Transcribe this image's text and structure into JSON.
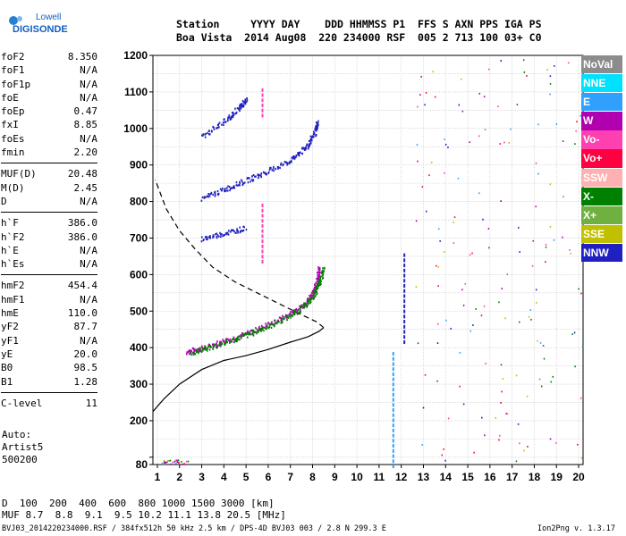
{
  "logo": {
    "line1": "Lowell",
    "line2": "DIGISONDE"
  },
  "header": {
    "line1": "Station     YYYY DAY    DDD HHMMSS P1  FFS S AXN PPS IGA PS",
    "line2": "Boa Vista  2014 Aug08  220 234000 RSF  005 2 713 100 03+ C0"
  },
  "params": [
    [
      [
        "foF2",
        "8.350"
      ],
      [
        "foF1",
        "N/A"
      ],
      [
        "foF1p",
        "N/A"
      ],
      [
        "foE",
        "N/A"
      ],
      [
        "foEp",
        "0.47"
      ],
      [
        "fxI",
        "8.85"
      ],
      [
        "foEs",
        "N/A"
      ],
      [
        "fmin",
        "2.20"
      ]
    ],
    [
      [
        "MUF(D)",
        "20.48"
      ],
      [
        "M(D)",
        "2.45"
      ],
      [
        "D",
        "N/A"
      ]
    ],
    [
      [
        "h`F",
        "386.0"
      ],
      [
        "h`F2",
        "386.0"
      ],
      [
        "h`E",
        "N/A"
      ],
      [
        "h`Es",
        "N/A"
      ]
    ],
    [
      [
        "hmF2",
        "454.4"
      ],
      [
        "hmF1",
        "N/A"
      ],
      [
        "hmE",
        "110.0"
      ],
      [
        "yF2",
        "87.7"
      ],
      [
        "yF1",
        "N/A"
      ],
      [
        "yE",
        "20.0"
      ],
      [
        "B0",
        "98.5"
      ],
      [
        "B1",
        "1.28"
      ]
    ],
    [
      [
        "C-level",
        "11"
      ]
    ]
  ],
  "auto": {
    "line1": "Auto:",
    "line2": "Artist5",
    "line3": "500200"
  },
  "dmuf": {
    "d_label": "D",
    "d_values": "  100  200  400  600  800 1000 1500 3000 [km]",
    "muf_label": "MUF",
    "muf_values": " 8.7  8.8  9.1  9.5 10.2 11.1 13.8 20.5 [MHz]"
  },
  "footer": {
    "left": "BVJ03_2014220234000.RSF / 384fx512h 50 kHz 2.5 km / DPS-4D BVJ03 003 / 2.8 N 299.3 E",
    "right": "Ion2Png v. 1.3.17"
  },
  "legend": [
    {
      "label": "NoVal",
      "color": "#8c8c8c"
    },
    {
      "label": "NNE",
      "color": "#00e0ff"
    },
    {
      "label": "E",
      "color": "#30a0ff"
    },
    {
      "label": "W",
      "color": "#b000b0"
    },
    {
      "label": "Vo-",
      "color": "#ff40b0"
    },
    {
      "label": "Vo+",
      "color": "#ff0040"
    },
    {
      "label": "SSW",
      "color": "#ffb0b0"
    },
    {
      "label": "X-",
      "color": "#008000"
    },
    {
      "label": "X+",
      "color": "#70b040"
    },
    {
      "label": "SSE",
      "color": "#c0c000"
    },
    {
      "label": "NNW",
      "color": "#2020c0"
    }
  ],
  "chart_data": {
    "type": "scatter",
    "xlim": [
      0.8,
      20.2
    ],
    "ylim": [
      80,
      1200
    ],
    "xticks": [
      1,
      2,
      3,
      4,
      5,
      6,
      7,
      8,
      9,
      10,
      11,
      12,
      13,
      14,
      15,
      16,
      17,
      18,
      19,
      20
    ],
    "yticks": [
      80,
      100,
      200,
      300,
      400,
      500,
      600,
      700,
      800,
      900,
      1000,
      1100,
      1200
    ],
    "ytick_labels": [
      "80",
      "",
      "200",
      "300",
      "400",
      "500",
      "600",
      "700",
      "800",
      "900",
      "1000",
      "1100",
      "1200"
    ],
    "grid": true,
    "profile_solid": [
      [
        0.8,
        225
      ],
      [
        1.3,
        260
      ],
      [
        2,
        300
      ],
      [
        3,
        340
      ],
      [
        4,
        365
      ],
      [
        5,
        378
      ],
      [
        6,
        395
      ],
      [
        7,
        415
      ],
      [
        7.8,
        430
      ],
      [
        8.3,
        445
      ],
      [
        8.5,
        455
      ],
      [
        8.2,
        470
      ],
      [
        7.5,
        490
      ],
      [
        6.5,
        520
      ],
      [
        5.5,
        550
      ],
      [
        4.5,
        580
      ],
      [
        3.5,
        620
      ],
      [
        2.7,
        670
      ],
      [
        2,
        720
      ],
      [
        1.4,
        780
      ],
      [
        0.9,
        860
      ]
    ],
    "profile_dashed_from_index": 10,
    "echo_traces": [
      {
        "name": "o-trace",
        "color": "#b000b0",
        "points": [
          [
            2.3,
            390
          ],
          [
            3,
            400
          ],
          [
            4,
            420
          ],
          [
            5,
            440
          ],
          [
            6,
            465
          ],
          [
            7,
            495
          ],
          [
            7.6,
            520
          ],
          [
            8,
            550
          ],
          [
            8.2,
            585
          ],
          [
            8.3,
            625
          ]
        ]
      },
      {
        "name": "x-trace",
        "color": "#008000",
        "points": [
          [
            2.5,
            388
          ],
          [
            3.5,
            405
          ],
          [
            4.5,
            425
          ],
          [
            5.5,
            448
          ],
          [
            6.5,
            475
          ],
          [
            7.4,
            505
          ],
          [
            8,
            540
          ],
          [
            8.3,
            580
          ],
          [
            8.5,
            620
          ]
        ]
      },
      {
        "name": "second-hop",
        "color": "#2020c0",
        "points": [
          [
            3,
            810
          ],
          [
            4,
            835
          ],
          [
            5,
            860
          ],
          [
            6,
            885
          ],
          [
            7,
            915
          ],
          [
            7.7,
            950
          ],
          [
            8.1,
            990
          ],
          [
            8.2,
            1020
          ]
        ]
      },
      {
        "name": "third-hop",
        "color": "#2020c0",
        "points": [
          [
            3,
            980
          ],
          [
            4,
            1020
          ],
          [
            4.7,
            1060
          ],
          [
            5,
            1080
          ]
        ]
      },
      {
        "name": "third-hop-low",
        "color": "#2020c0",
        "points": [
          [
            3,
            700
          ],
          [
            4,
            715
          ],
          [
            5,
            730
          ]
        ]
      }
    ]
  }
}
